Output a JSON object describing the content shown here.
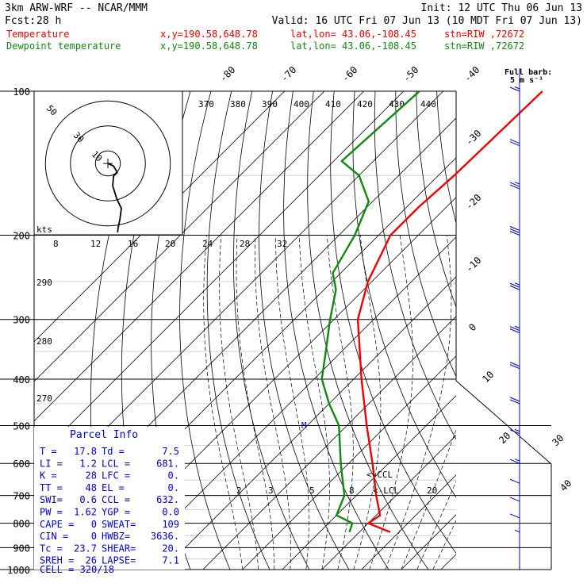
{
  "header": {
    "model": "3km ARW-WRF -- NCAR/MMM",
    "init": "Init: 12 UTC Thu 06 Jun 13",
    "fcst_label": "Fcst:",
    "fcst_value": "28 h",
    "valid": "Valid: 16 UTC Fri 07 Jun 13 (10 MDT Fri 07 Jun 13)"
  },
  "legend": [
    {
      "label": "Temperature",
      "xy": "x,y=190.58,648.78",
      "latlon": "lat,lon= 43.06,-108.45",
      "stn": "stn=RIW ,72672",
      "color": "#ee0000"
    },
    {
      "label": "Dewpoint temperature",
      "xy": "x,y=190.58,648.78",
      "latlon": "lat,lon= 43.06,-108.45",
      "stn": "stn=RIW ,72672",
      "color": "#118811"
    }
  ],
  "hodograph": {
    "label": "kts",
    "ring_labels": [
      "10",
      "30",
      "50"
    ],
    "speed_ticks": [
      "8",
      "12",
      "16",
      "20",
      "24",
      "28",
      "32"
    ]
  },
  "theta_labels": [
    "290",
    "280",
    "270"
  ],
  "theta_e_labels": [
    "370",
    "380",
    "390",
    "400",
    "410",
    "420",
    "430",
    "440"
  ],
  "top_temp_labels": [
    "-80",
    "-70",
    "-60",
    "-50",
    "-40"
  ],
  "right_temp_labels": [
    "-30",
    "-20",
    "-10",
    "0",
    "10",
    "20",
    "30",
    "40"
  ],
  "mixing_labels": [
    "2",
    "3",
    "5",
    "8",
    "20"
  ],
  "ccl_label": "<-CCL",
  "lcl_label": "<-LCL",
  "m_label": "M",
  "barb_legend": {
    "line1": "Full barb:",
    "line2": "5 m s⁻¹"
  },
  "parcel": {
    "title": "Parcel Info",
    "rows": [
      [
        "T  =",
        "17.8",
        "Td =",
        "7.5"
      ],
      [
        "LI =",
        "1.2",
        "LCL =",
        "681."
      ],
      [
        "K  =",
        "28",
        "LFC =",
        "0."
      ],
      [
        "TT =",
        "48",
        "EL  =",
        "0."
      ],
      [
        "SWI=",
        "0.6",
        "CCL =",
        "632."
      ],
      [
        "PW =",
        "1.62",
        "YGP =",
        "0.0"
      ],
      [
        "CAPE =",
        "0",
        "SWEAT=",
        "109"
      ],
      [
        "CIN =",
        "0",
        "HWBZ=",
        "3636."
      ],
      [
        "Tc =",
        "23.7",
        "SHEAR=",
        "20."
      ],
      [
        "SREH =",
        "26",
        "LAPSE=",
        "7.1"
      ]
    ],
    "cell": "CELL = 320/18"
  },
  "chart_data": {
    "type": "skew-t log-p sounding",
    "ylabel": "",
    "xlabel": "",
    "pressure_levels": [
      100,
      200,
      300,
      400,
      500,
      600,
      700,
      800,
      900,
      1000
    ],
    "isotherm_labels": [
      -80,
      -70,
      -60,
      -50,
      -40,
      -30,
      -20,
      -10,
      0,
      10,
      20,
      30,
      40
    ],
    "series": [
      {
        "name": "Temperature",
        "color": "#ee0000",
        "p": [
          100,
          150,
          175,
          200,
          250,
          300,
          400,
          500,
          600,
          700,
          770,
          800,
          835
        ],
        "t": [
          -55,
          -56,
          -57,
          -57,
          -51,
          -44,
          -28,
          -15,
          -4,
          5,
          11,
          10,
          17.8
        ]
      },
      {
        "name": "Dewpoint temperature",
        "color": "#118811",
        "p": [
          100,
          140,
          150,
          170,
          200,
          240,
          260,
          300,
          350,
          400,
          450,
          500,
          600,
          700,
          770,
          800,
          835
        ],
        "t": [
          -86,
          -88,
          -80,
          -71,
          -66,
          -62,
          -57,
          -51,
          -44,
          -38,
          -30,
          -22,
          -12,
          -3,
          0,
          6,
          7.5
        ]
      }
    ],
    "hodograph_trace": [
      [
        0,
        0
      ],
      [
        1.5,
        0.7
      ],
      [
        2.5,
        2.4
      ],
      [
        1.5,
        3.4
      ],
      [
        1.3,
        6
      ],
      [
        2.4,
        9.5
      ],
      [
        3.6,
        12
      ],
      [
        3.2,
        15
      ],
      [
        2.7,
        17.3
      ],
      [
        2.6,
        18.4
      ]
    ],
    "winds_mps": {
      "p": [
        100,
        130,
        160,
        200,
        260,
        320,
        380,
        450,
        520,
        600,
        660,
        720,
        780,
        835
      ],
      "speed": [
        8,
        12,
        14,
        15,
        14,
        13,
        12,
        10,
        9,
        8,
        7,
        6,
        5,
        4
      ],
      "dir": [
        260,
        255,
        255,
        250,
        250,
        250,
        255,
        260,
        265,
        270,
        290,
        300,
        320,
        335
      ]
    }
  }
}
